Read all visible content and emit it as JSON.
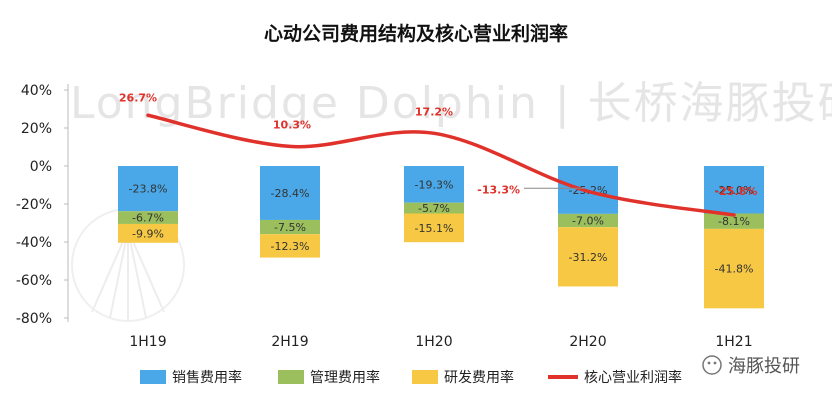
{
  "chart_data": {
    "type": "bar",
    "title": "心动公司费用结构及核心营业利润率",
    "categories": [
      "1H19",
      "2H19",
      "1H20",
      "2H20",
      "1H21"
    ],
    "ylim": [
      -80,
      40
    ],
    "yticks": [
      "40%",
      "20%",
      "0%",
      "-20%",
      "-40%",
      "-60%",
      "-80%"
    ],
    "ytick_values": [
      40,
      20,
      0,
      -20,
      -40,
      -60,
      -80
    ],
    "series": [
      {
        "name": "销售费用率",
        "color": "#4aa8e8",
        "values": [
          -23.8,
          -28.4,
          -19.3,
          -25.2,
          -25.0
        ],
        "labels": [
          "-23.8%",
          "-28.4%",
          "-19.3%",
          "-25.2%",
          "-25.0%"
        ]
      },
      {
        "name": "管理费用率",
        "color": "#9cbf5e",
        "values": [
          -6.7,
          -7.5,
          -5.7,
          -7.0,
          -8.1
        ],
        "labels": [
          "-6.7%",
          "-7.5%",
          "-5.7%",
          "-7.0%",
          "-8.1%"
        ]
      },
      {
        "name": "研发费用率",
        "color": "#f7c843",
        "values": [
          -9.9,
          -12.3,
          -15.1,
          -31.2,
          -41.8
        ],
        "labels": [
          "-9.9%",
          "-12.3%",
          "-15.1%",
          "-31.2%",
          "-41.8%"
        ]
      },
      {
        "name": "核心营业利润率",
        "color": "#e0312b",
        "type": "line",
        "values": [
          26.7,
          10.3,
          17.2,
          -13.3,
          -25.8
        ],
        "labels": [
          "26.7%",
          "10.3%",
          "17.2%",
          "-13.3%",
          "-25.8%"
        ]
      }
    ],
    "legend_position": "bottom",
    "grid": false
  },
  "watermark": "LongBridge Dolphin | 长桥海豚投研",
  "brand": "海豚投研"
}
